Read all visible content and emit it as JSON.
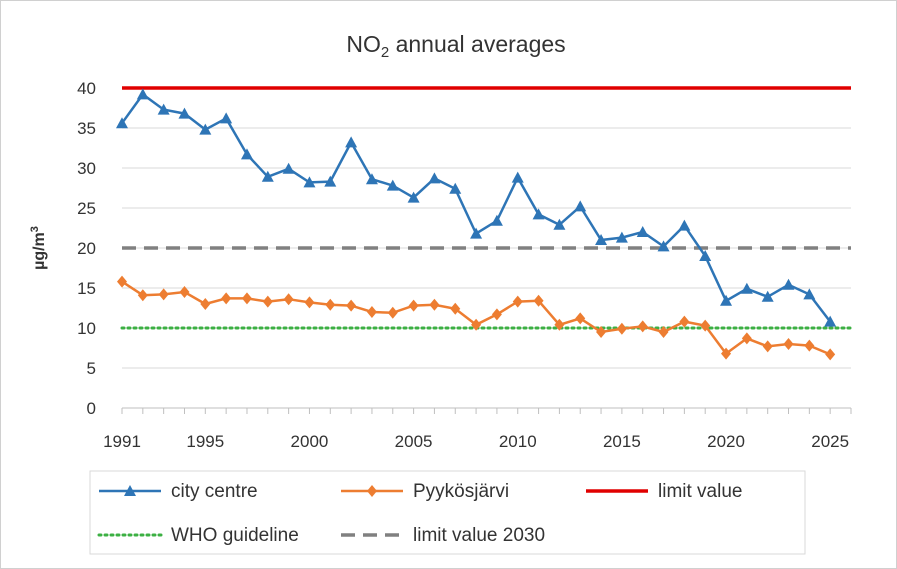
{
  "chart_data": {
    "type": "line",
    "title": {
      "pre": "NO",
      "sub": "2",
      "post": " annual averages"
    },
    "ylabel": {
      "base": "µg/m",
      "sup": "3"
    },
    "xlabel": "",
    "xlim": [
      1991,
      2026
    ],
    "ylim": [
      0,
      40
    ],
    "y_ticks": [
      0,
      5,
      10,
      15,
      20,
      25,
      30,
      35,
      40
    ],
    "x_tick_labels": [
      1991,
      1995,
      2000,
      2005,
      2010,
      2015,
      2020,
      2025
    ],
    "grid": true,
    "legend_position": "bottom",
    "series": [
      {
        "name": "city centre",
        "color": "#2e75b6",
        "marker": "triangle",
        "x": [
          1991,
          1992,
          1993,
          1994,
          1995,
          1996,
          1997,
          1998,
          1999,
          2000,
          2001,
          2002,
          2003,
          2004,
          2005,
          2006,
          2007,
          2008,
          2009,
          2010,
          2011,
          2012,
          2013,
          2014,
          2015,
          2016,
          2017,
          2018,
          2019,
          2020,
          2021,
          2022,
          2023,
          2024,
          2025
        ],
        "y": [
          35.6,
          39.2,
          37.3,
          36.8,
          34.8,
          36.2,
          31.7,
          28.9,
          29.9,
          28.2,
          28.3,
          33.2,
          28.6,
          27.8,
          26.3,
          28.7,
          27.4,
          21.8,
          23.4,
          28.8,
          24.2,
          22.9,
          25.2,
          21.0,
          21.3,
          22.0,
          20.2,
          22.8,
          19.0,
          13.4,
          14.9,
          13.9,
          15.4,
          14.2,
          10.8
        ]
      },
      {
        "name": "Pyykösjärvi",
        "color": "#ed7d31",
        "marker": "diamond",
        "x": [
          1991,
          1992,
          1993,
          1994,
          1995,
          1996,
          1997,
          1998,
          1999,
          2000,
          2001,
          2002,
          2003,
          2004,
          2005,
          2006,
          2007,
          2008,
          2009,
          2010,
          2011,
          2012,
          2013,
          2014,
          2015,
          2016,
          2017,
          2018,
          2019,
          2020,
          2021,
          2022,
          2023,
          2024,
          2025
        ],
        "y": [
          15.8,
          14.1,
          14.2,
          14.5,
          13.0,
          13.7,
          13.7,
          13.3,
          13.6,
          13.2,
          12.9,
          12.8,
          12.0,
          11.9,
          12.8,
          12.9,
          12.4,
          10.4,
          11.7,
          13.3,
          13.4,
          10.4,
          11.2,
          9.5,
          9.9,
          10.2,
          9.5,
          10.8,
          10.3,
          6.8,
          8.7,
          7.7,
          8.0,
          7.8,
          6.7
        ]
      },
      {
        "name": "limit value",
        "color": "#e00000",
        "style": "solid",
        "x": [
          1991,
          2026
        ],
        "y": [
          40,
          40
        ]
      },
      {
        "name": "WHO guideline",
        "color": "#3cb043",
        "style": "dotted",
        "x": [
          1991,
          2026
        ],
        "y": [
          10,
          10
        ]
      },
      {
        "name": "limit value 2030",
        "color": "#808080",
        "style": "dashed",
        "x": [
          1991,
          2026
        ],
        "y": [
          20,
          20
        ]
      }
    ]
  }
}
